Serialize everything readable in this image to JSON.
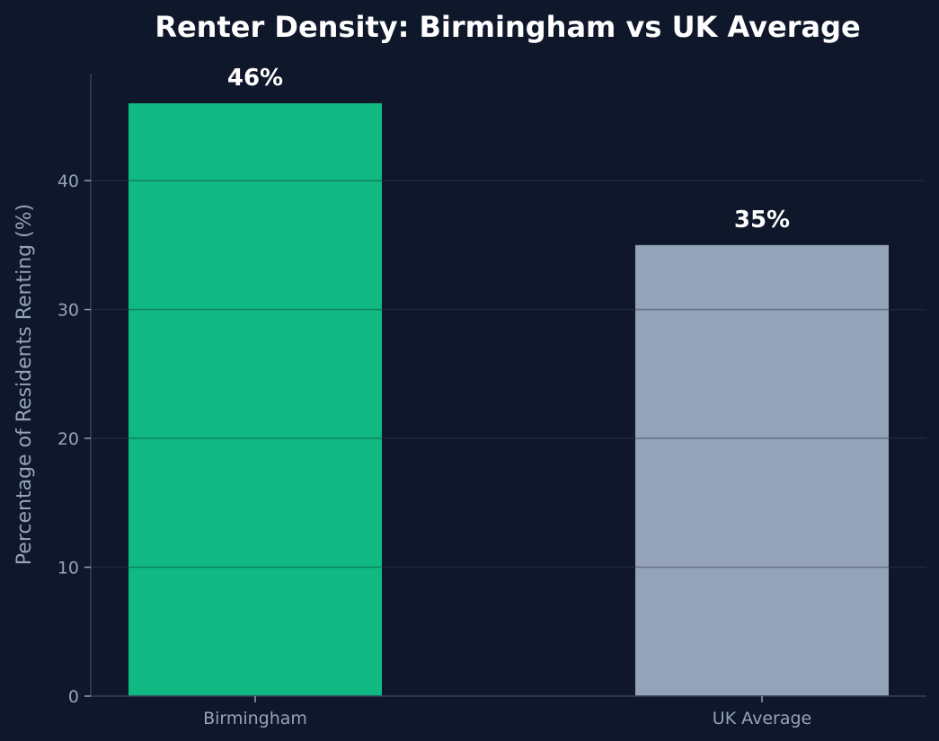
{
  "chart_data": {
    "type": "bar",
    "title": "Renter Density: Birmingham vs UK Average",
    "xlabel": "",
    "ylabel": "Percentage of Residents Renting (%)",
    "categories": [
      "Birmingham",
      "UK Average"
    ],
    "values": [
      46,
      35
    ],
    "data_labels": [
      "46%",
      "35%"
    ],
    "ylim": [
      0,
      48.3
    ],
    "yticks": [
      0,
      10,
      20,
      30,
      40
    ],
    "ytick_labels": [
      "0",
      "10",
      "20",
      "30",
      "40"
    ],
    "grid": "horizontal",
    "legend": "none",
    "colors": {
      "background": "#0f172a",
      "bars": [
        "#10b981",
        "#94a3b8"
      ],
      "grid": "#1e293b",
      "axis": "#334155",
      "tick_text": "#94a3b8",
      "title_text": "#ffffff",
      "label_text": "#ffffff"
    }
  }
}
